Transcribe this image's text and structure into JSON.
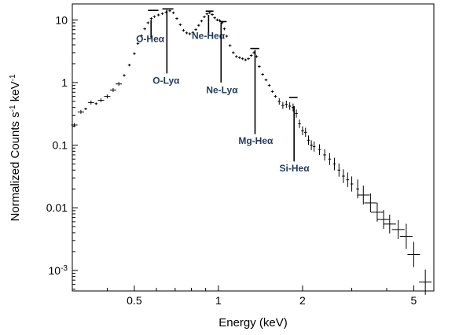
{
  "chart_data": {
    "type": "scatter",
    "xlabel": "Energy (keV)",
    "ylabel_base": "Normalized Counts s",
    "ylabel_sup1": "-1",
    "ylabel_mid": " keV",
    "ylabel_sup2": "-1",
    "x_scale": "log",
    "y_scale": "log",
    "xlim": [
      0.3,
      5.9
    ],
    "ylim": [
      0.00047,
      18
    ],
    "x_ticks": [
      {
        "value": 0.5,
        "label": "0.5"
      },
      {
        "value": 1,
        "label": "1"
      },
      {
        "value": 2,
        "label": "2"
      },
      {
        "value": 5,
        "label": "5"
      }
    ],
    "y_ticks": [
      {
        "value": 10,
        "label": "10"
      },
      {
        "value": 1,
        "label": "1"
      },
      {
        "value": 0.1,
        "label": "0.1"
      },
      {
        "value": 0.01,
        "label": "0.01"
      },
      {
        "value": 0.001,
        "label_base": "10",
        "label_sup": "-3"
      }
    ],
    "grid": false,
    "legend": "none",
    "points": [
      [
        0.305,
        0.21
      ],
      [
        0.322,
        0.34
      ],
      [
        0.335,
        0.38
      ],
      [
        0.35,
        0.48
      ],
      [
        0.365,
        0.46
      ],
      [
        0.38,
        0.52
      ],
      [
        0.4,
        0.6
      ],
      [
        0.42,
        0.76
      ],
      [
        0.44,
        0.95
      ],
      [
        0.46,
        1.3
      ],
      [
        0.48,
        1.9
      ],
      [
        0.5,
        2.9
      ],
      [
        0.515,
        4.2
      ],
      [
        0.53,
        5.6
      ],
      [
        0.545,
        7.2
      ],
      [
        0.56,
        9.0
      ],
      [
        0.575,
        10.5
      ],
      [
        0.59,
        11.3
      ],
      [
        0.61,
        12.0
      ],
      [
        0.63,
        12.6
      ],
      [
        0.65,
        13.3
      ],
      [
        0.67,
        14.0
      ],
      [
        0.69,
        13.0
      ],
      [
        0.71,
        10.5
      ],
      [
        0.73,
        8.4
      ],
      [
        0.75,
        6.8
      ],
      [
        0.77,
        6.2
      ],
      [
        0.79,
        6.0
      ],
      [
        0.81,
        6.3
      ],
      [
        0.83,
        7.0
      ],
      [
        0.85,
        8.2
      ],
      [
        0.87,
        9.6
      ],
      [
        0.89,
        11.2
      ],
      [
        0.91,
        12.5
      ],
      [
        0.93,
        13.0
      ],
      [
        0.95,
        12.2
      ],
      [
        0.97,
        10.8
      ],
      [
        0.99,
        10.0
      ],
      [
        1.01,
        9.8
      ],
      [
        1.03,
        9.0
      ],
      [
        1.05,
        7.2
      ],
      [
        1.07,
        5.5
      ],
      [
        1.1,
        3.9
      ],
      [
        1.13,
        3.0
      ],
      [
        1.16,
        2.6
      ],
      [
        1.19,
        2.5
      ],
      [
        1.22,
        2.4
      ],
      [
        1.25,
        2.3
      ],
      [
        1.28,
        2.4
      ],
      [
        1.31,
        2.7
      ],
      [
        1.34,
        3.0
      ],
      [
        1.37,
        2.6
      ],
      [
        1.4,
        1.8
      ],
      [
        1.44,
        1.35
      ],
      [
        1.48,
        1.1
      ],
      [
        1.52,
        0.9
      ],
      [
        1.56,
        0.72
      ],
      [
        1.6,
        0.6
      ],
      [
        1.65,
        0.5
      ],
      [
        1.7,
        0.43
      ],
      [
        1.75,
        0.45
      ],
      [
        1.8,
        0.42
      ],
      [
        1.85,
        0.4
      ],
      [
        1.9,
        0.32
      ],
      [
        1.95,
        0.22
      ],
      [
        2.0,
        0.17
      ],
      [
        2.05,
        0.16
      ],
      [
        2.1,
        0.12
      ],
      [
        2.15,
        0.1
      ],
      [
        2.2,
        0.095
      ],
      [
        2.3,
        0.085
      ],
      [
        2.4,
        0.07
      ],
      [
        2.5,
        0.06
      ],
      [
        2.6,
        0.05
      ],
      [
        2.7,
        0.04
      ],
      [
        2.8,
        0.032
      ],
      [
        2.9,
        0.028
      ],
      [
        3.0,
        0.024
      ],
      [
        3.15,
        0.02
      ],
      [
        3.3,
        0.016
      ],
      [
        3.5,
        0.012
      ],
      [
        3.7,
        0.0085
      ],
      [
        3.9,
        0.0065
      ],
      [
        4.1,
        0.0055
      ],
      [
        4.4,
        0.0045
      ],
      [
        4.7,
        0.0035
      ],
      [
        5.0,
        0.0018
      ],
      [
        5.5,
        0.00065
      ]
    ],
    "big_errorbars": [
      [
        0.305,
        0.21
      ],
      [
        0.322,
        0.34
      ],
      [
        0.35,
        0.48
      ],
      [
        0.38,
        0.52
      ],
      [
        0.4,
        0.6
      ],
      [
        0.42,
        0.76
      ],
      [
        0.44,
        0.95
      ],
      [
        3.3,
        0.016
      ],
      [
        3.5,
        0.012
      ],
      [
        3.7,
        0.0085
      ],
      [
        3.9,
        0.0065
      ],
      [
        4.1,
        0.0055
      ],
      [
        4.4,
        0.0045
      ],
      [
        4.7,
        0.0035
      ],
      [
        5.0,
        0.0018
      ],
      [
        5.5,
        0.00065
      ]
    ],
    "line_annotations": [
      {
        "label": "O-He",
        "energy": 0.574,
        "bar_left": 0.56,
        "bar_right": 0.61,
        "bar_y": 14.2,
        "line_top": 10.0,
        "line_bottom": 5.2,
        "label_x": 0.57,
        "label_y": 4.4
      },
      {
        "label": "O-Ly",
        "energy": 0.654,
        "bar_left": 0.63,
        "bar_right": 0.69,
        "bar_y": 15.0,
        "line_top": 14.5,
        "line_bottom": 1.4,
        "label_x": 0.65,
        "label_y": 0.95
      },
      {
        "label": "Ne-He",
        "energy": 0.922,
        "bar_left": 0.9,
        "bar_right": 0.96,
        "bar_y": 13.8,
        "line_top": 12.0,
        "line_bottom": 5.8,
        "label_x": 0.92,
        "label_y": 5.0
      },
      {
        "label": "Ne-Ly",
        "energy": 1.022,
        "bar_left": 1.01,
        "bar_right": 1.07,
        "bar_y": 9.4,
        "line_top": 9.0,
        "line_bottom": 1.0,
        "label_x": 1.03,
        "label_y": 0.68
      },
      {
        "label": "Mg-He",
        "energy": 1.352,
        "bar_left": 1.3,
        "bar_right": 1.4,
        "bar_y": 3.5,
        "line_top": 3.3,
        "line_bottom": 0.15,
        "label_x": 1.36,
        "label_y": 0.105
      },
      {
        "label": "Si-He",
        "energy": 1.865,
        "bar_left": 1.79,
        "bar_right": 1.92,
        "bar_y": 0.58,
        "line_top": 0.42,
        "line_bottom": 0.055,
        "label_x": 1.87,
        "label_y": 0.038
      }
    ],
    "alpha_symbol": "α"
  },
  "colors": {
    "data": "#000000",
    "annotation_text": "#1f3a5f",
    "axis": "#000000"
  }
}
